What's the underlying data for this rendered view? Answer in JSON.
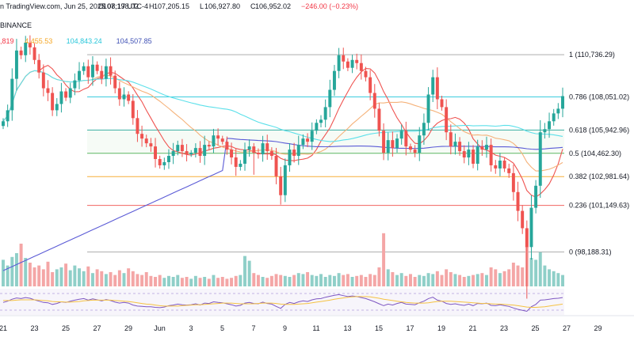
{
  "header": {
    "line1_text": "n TradingView.com, Jun 25, 2025 08:17 UTC-4",
    "ohlc": [
      {
        "label": "O",
        "value": "107,198.02"
      },
      {
        "label": "H",
        "value": "107,205.15"
      },
      {
        "label": "L",
        "value": "106,927.80"
      },
      {
        "label": "C",
        "value": "106,952.02"
      },
      {
        "label": "",
        "value": "−246.00 (−0.23%)"
      }
    ],
    "exchange": "BINANCE",
    "ma_values": [
      {
        "value": ",819",
        "color": "#f23645"
      },
      {
        "value": "4,455.53",
        "color": "#f5a623"
      },
      {
        "value": "104,843.24",
        "color": "#26c6da"
      },
      {
        "value": "104,507.85",
        "color": "#3f51b5"
      }
    ]
  },
  "colors": {
    "up": "#26a69a",
    "down": "#ef5350",
    "vol_up": "#8fcfc8",
    "vol_down": "#f4a6a6",
    "ma_fast": "#ef5350",
    "ma_mid": "#f5b27a",
    "ma_slow": "#5ce0ea",
    "ma_long": "#5b5bd6",
    "rsi": "#7e57c2",
    "rsi_ma": "#f5c242"
  },
  "chart_data": {
    "type": "candlestick",
    "symbol_source": "BINANCE",
    "ylim": [
      96000,
      112200
    ],
    "x_ticks": [
      "21",
      "23",
      "25",
      "27",
      "29",
      "Jun",
      "3",
      "5",
      "7",
      "9",
      "11",
      "13",
      "15",
      "17",
      "19",
      "21",
      "23",
      "25",
      "27",
      "29"
    ],
    "fib_levels": [
      {
        "ratio": "1",
        "price": 110736.29,
        "label": "1 (110,736.29)",
        "color": "#a5a5a5"
      },
      {
        "ratio": "0.786",
        "price": 108051.02,
        "label": "0.786 (108,051.02)",
        "color": "#26c6da"
      },
      {
        "ratio": "0.618",
        "price": 105942.96,
        "label": "0.618 (105,942.96)",
        "color": "#26a69a"
      },
      {
        "ratio": "0.5",
        "price": 104462.3,
        "label": "0.5 (104,462.30)",
        "color": "#4caf50"
      },
      {
        "ratio": "0.382",
        "price": 102981.64,
        "label": "0.382 (102,981.64)",
        "color": "#f5a623"
      },
      {
        "ratio": "0.236",
        "price": 101149.63,
        "label": "0.236 (101,149.63)",
        "color": "#ef5350"
      },
      {
        "ratio": "0",
        "price": 98188.31,
        "label": "0 (98,188.31)",
        "color": "#a5a5a5"
      }
    ],
    "closes": [
      106500,
      107200,
      109200,
      111000,
      110700,
      111500,
      111200,
      110400,
      109600,
      108600,
      108300,
      107200,
      107600,
      108400,
      108000,
      108600,
      109100,
      109700,
      110000,
      109300,
      110100,
      109700,
      109200,
      110000,
      109400,
      108600,
      107900,
      108200,
      107800,
      106700,
      105700,
      105400,
      105100,
      104900,
      104100,
      103700,
      103900,
      104300,
      104600,
      105000,
      104600,
      104400,
      104500,
      104800,
      104300,
      105000,
      104900,
      105600,
      105400,
      105200,
      104700,
      104200,
      103600,
      103800,
      104700,
      104900,
      104500,
      104400,
      105100,
      104600,
      104300,
      103000,
      101800,
      103700,
      104700,
      104300,
      105000,
      105400,
      105200,
      105900,
      106400,
      106600,
      107400,
      108500,
      109700,
      110700,
      110300,
      109900,
      110400,
      110200,
      109700,
      109300,
      108300,
      107300,
      105900,
      104500,
      105300,
      104800,
      105400,
      105900,
      104900,
      104700,
      104500,
      105600,
      106400,
      108200,
      109300,
      107900,
      107400,
      105800,
      104900,
      105200,
      104600,
      104200,
      104700,
      103800,
      104900,
      104700,
      105000,
      103700,
      103500,
      104000,
      103500,
      103200,
      102000,
      100800,
      99700,
      98500,
      101000,
      102400,
      105800,
      106000,
      106500,
      107000,
      107300,
      108100
    ],
    "volumes": [
      0.28,
      0.22,
      0.31,
      0.35,
      0.45,
      0.3,
      0.25,
      0.2,
      0.22,
      0.18,
      0.26,
      0.15,
      0.18,
      0.2,
      0.24,
      0.17,
      0.22,
      0.19,
      0.16,
      0.21,
      0.14,
      0.18,
      0.16,
      0.13,
      0.15,
      0.12,
      0.17,
      0.14,
      0.19,
      0.16,
      0.13,
      0.12,
      0.15,
      0.11,
      0.1,
      0.12,
      0.09,
      0.11,
      0.1,
      0.12,
      0.09,
      0.1,
      0.08,
      0.11,
      0.09,
      0.1,
      0.08,
      0.12,
      0.09,
      0.1,
      0.08,
      0.09,
      0.11,
      0.12,
      0.32,
      0.27,
      0.14,
      0.12,
      0.1,
      0.09,
      0.11,
      0.13,
      0.12,
      0.11,
      0.1,
      0.12,
      0.14,
      0.13,
      0.15,
      0.12,
      0.11,
      0.13,
      0.1,
      0.12,
      0.11,
      0.14,
      0.12,
      0.13,
      0.1,
      0.11,
      0.12,
      0.1,
      0.13,
      0.12,
      0.2,
      0.56,
      0.18,
      0.15,
      0.12,
      0.14,
      0.11,
      0.13,
      0.1,
      0.12,
      0.11,
      0.14,
      0.13,
      0.16,
      0.12,
      0.18,
      0.15,
      0.13,
      0.12,
      0.1,
      0.11,
      0.12,
      0.13,
      0.14,
      0.12,
      0.2,
      0.18,
      0.14,
      0.16,
      0.18,
      0.25,
      0.22,
      0.2,
      0.42,
      0.3,
      0.28,
      0.36,
      0.22,
      0.18,
      0.16,
      0.14,
      0.12
    ],
    "rsi": [
      48,
      52,
      58,
      62,
      60,
      63,
      61,
      56,
      52,
      48,
      47,
      42,
      45,
      50,
      48,
      52,
      55,
      58,
      60,
      55,
      59,
      56,
      53,
      57,
      54,
      49,
      46,
      48,
      46,
      40,
      37,
      36,
      35,
      35,
      33,
      32,
      34,
      38,
      40,
      43,
      41,
      40,
      41,
      44,
      40,
      46,
      45,
      50,
      48,
      47,
      44,
      41,
      37,
      39,
      46,
      48,
      45,
      44,
      49,
      45,
      43,
      36,
      30,
      42,
      48,
      45,
      50,
      53,
      51,
      56,
      59,
      60,
      64,
      67,
      70,
      72,
      69,
      66,
      68,
      66,
      63,
      60,
      55,
      50,
      44,
      38,
      43,
      40,
      45,
      48,
      43,
      42,
      41,
      47,
      52,
      60,
      64,
      55,
      52,
      45,
      42,
      44,
      41,
      39,
      43,
      38,
      45,
      44,
      46,
      39,
      38,
      41,
      38,
      36,
      31,
      27,
      24,
      21,
      35,
      42,
      55,
      56,
      58,
      60,
      61,
      63
    ],
    "rsi_ma": [
      54,
      54,
      54,
      55,
      56,
      56,
      56,
      56,
      55,
      54,
      53,
      51,
      50,
      50,
      49,
      49,
      50,
      51,
      53,
      54,
      55,
      55,
      55,
      55,
      55,
      54,
      53,
      52,
      51,
      49,
      47,
      45,
      43,
      42,
      40,
      38,
      37,
      37,
      37,
      37,
      38,
      39,
      40,
      41,
      41,
      42,
      43,
      44,
      45,
      46,
      46,
      46,
      45,
      44,
      44,
      44,
      44,
      45,
      46,
      46,
      46,
      45,
      43,
      42,
      42,
      42,
      43,
      44,
      45,
      47,
      49,
      51,
      53,
      55,
      58,
      60,
      62,
      64,
      65,
      66,
      66,
      66,
      65,
      63,
      61,
      58,
      56,
      54,
      52,
      50,
      48,
      47,
      46,
      46,
      46,
      47,
      49,
      51,
      52,
      52,
      52,
      51,
      50,
      49,
      48,
      47,
      46,
      45,
      45,
      44,
      43,
      43,
      42,
      41,
      40,
      38,
      36,
      34,
      33,
      33,
      34,
      35,
      37,
      39,
      41,
      43
    ]
  }
}
